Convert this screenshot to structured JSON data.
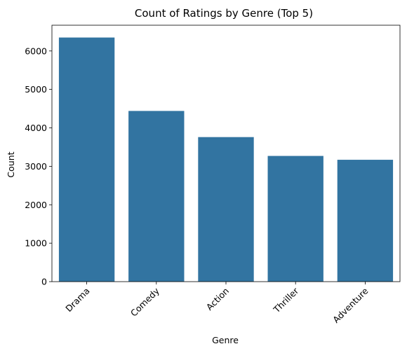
{
  "chart_data": {
    "type": "bar",
    "title": "Count of Ratings by Genre (Top 5)",
    "xlabel": "Genre",
    "ylabel": "Count",
    "categories": [
      "Drama",
      "Comedy",
      "Action",
      "Thriller",
      "Adventure"
    ],
    "values": [
      6350,
      4440,
      3760,
      3270,
      3170
    ],
    "ylim": [
      0,
      6670
    ],
    "yticks": [
      0,
      1000,
      2000,
      3000,
      4000,
      5000,
      6000
    ],
    "ytick_labels": [
      "0",
      "1000",
      "2000",
      "3000",
      "4000",
      "5000",
      "6000"
    ],
    "xtick_rotation_deg": 45,
    "grid": false,
    "bar_color": "#3274a1"
  }
}
